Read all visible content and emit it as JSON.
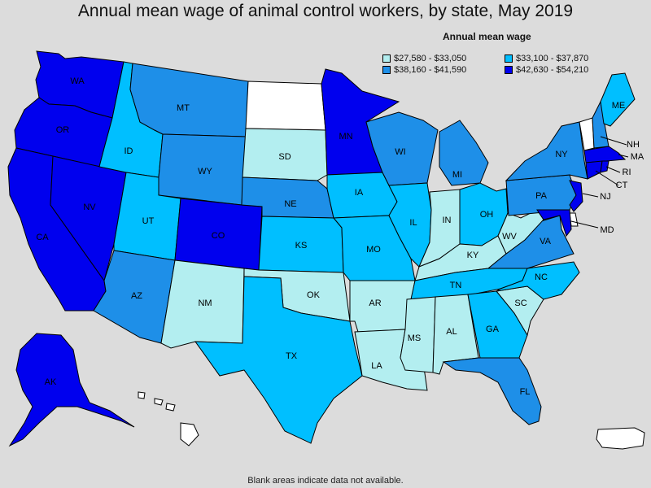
{
  "title": "Annual mean wage of animal control workers, by state, May 2019",
  "legend": {
    "title": "Annual mean wage",
    "items": [
      {
        "label": "$27,580 - $33,050",
        "color": "#b3eef0"
      },
      {
        "label": "$33,100 - $37,870",
        "color": "#00bfff"
      },
      {
        "label": "$38,160 - $41,590",
        "color": "#1e8fe8"
      },
      {
        "label": "$42,630 - $54,210",
        "color": "#0000ee"
      }
    ]
  },
  "footnote": "Blank areas indicate data not available.",
  "colors": {
    "background": "#dcdcdc",
    "no_data": "#ffffff",
    "tier1": "#b3eef0",
    "tier2": "#00bfff",
    "tier3": "#1e8fe8",
    "tier4": "#0000ee"
  },
  "states": {
    "WA": {
      "label": "WA",
      "tier": 4
    },
    "OR": {
      "label": "OR",
      "tier": 4
    },
    "CA": {
      "label": "CA",
      "tier": 4
    },
    "NV": {
      "label": "NV",
      "tier": 4
    },
    "ID": {
      "label": "ID",
      "tier": 2
    },
    "MT": {
      "label": "MT",
      "tier": 3
    },
    "WY": {
      "label": "WY",
      "tier": 3
    },
    "UT": {
      "label": "UT",
      "tier": 2
    },
    "CO": {
      "label": "CO",
      "tier": 4
    },
    "AZ": {
      "label": "AZ",
      "tier": 3
    },
    "NM": {
      "label": "NM",
      "tier": 1
    },
    "ND": {
      "label": "",
      "tier": 0
    },
    "SD": {
      "label": "SD",
      "tier": 1
    },
    "NE": {
      "label": "NE",
      "tier": 3
    },
    "KS": {
      "label": "KS",
      "tier": 2
    },
    "OK": {
      "label": "OK",
      "tier": 1
    },
    "TX": {
      "label": "TX",
      "tier": 2
    },
    "MN": {
      "label": "MN",
      "tier": 4
    },
    "IA": {
      "label": "IA",
      "tier": 2
    },
    "MO": {
      "label": "MO",
      "tier": 2
    },
    "AR": {
      "label": "AR",
      "tier": 1
    },
    "LA": {
      "label": "LA",
      "tier": 1
    },
    "WI": {
      "label": "WI",
      "tier": 3
    },
    "IL": {
      "label": "IL",
      "tier": 2
    },
    "MI": {
      "label": "MI",
      "tier": 3
    },
    "IN": {
      "label": "IN",
      "tier": 1
    },
    "OH": {
      "label": "OH",
      "tier": 2
    },
    "KY": {
      "label": "KY",
      "tier": 1
    },
    "TN": {
      "label": "TN",
      "tier": 2
    },
    "MS": {
      "label": "MS",
      "tier": 1
    },
    "AL": {
      "label": "AL",
      "tier": 1
    },
    "GA": {
      "label": "GA",
      "tier": 2
    },
    "FL": {
      "label": "FL",
      "tier": 3
    },
    "SC": {
      "label": "SC",
      "tier": 1
    },
    "NC": {
      "label": "NC",
      "tier": 2
    },
    "VA": {
      "label": "VA",
      "tier": 3
    },
    "WV": {
      "label": "WV",
      "tier": 1
    },
    "PA": {
      "label": "PA",
      "tier": 3
    },
    "NY": {
      "label": "NY",
      "tier": 3
    },
    "ME": {
      "label": "ME",
      "tier": 2
    },
    "VT": {
      "label": "",
      "tier": 0
    },
    "NH": {
      "label": "NH",
      "tier": 3
    },
    "MA": {
      "label": "MA",
      "tier": 4
    },
    "CT": {
      "label": "CT",
      "tier": 4
    },
    "RI": {
      "label": "RI",
      "tier": 4
    },
    "NJ": {
      "label": "NJ",
      "tier": 4
    },
    "DE": {
      "label": "",
      "tier": 0
    },
    "MD": {
      "label": "MD",
      "tier": 4
    },
    "AK": {
      "label": "AK",
      "tier": 4
    },
    "HI": {
      "label": "",
      "tier": 0
    },
    "PR": {
      "label": "",
      "tier": 0
    }
  }
}
